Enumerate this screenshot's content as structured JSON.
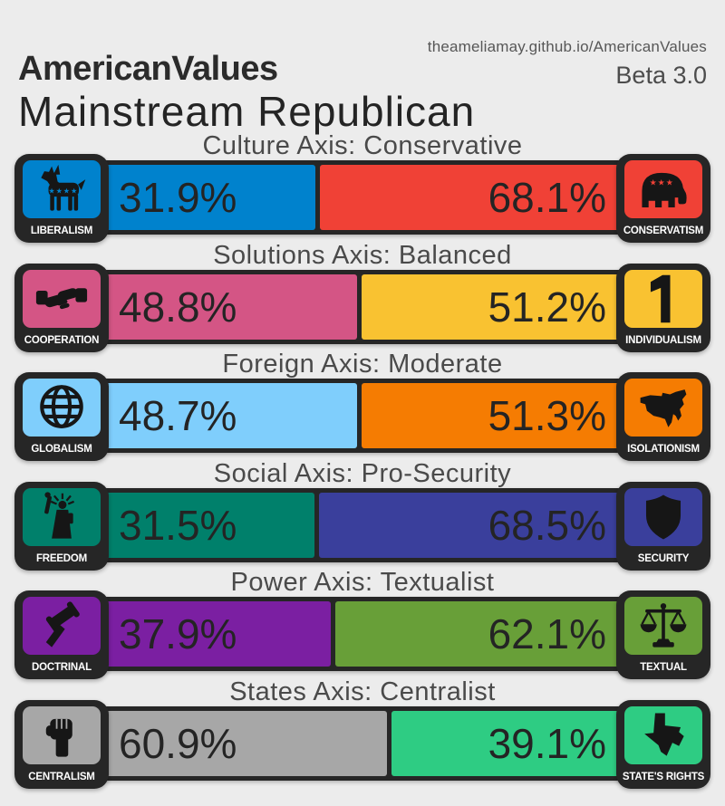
{
  "theme": {
    "background": "#ececec",
    "frame": "#262626",
    "axis_title_color": "#4a4a4a",
    "percent_text_color": "#242424",
    "label_text_color": "#ffffff"
  },
  "header": {
    "url": "theameliamay.github.io/AmericanValues",
    "app_title": "AmericanValues",
    "version": "Beta 3.0",
    "result_title": "Mainstream Republican"
  },
  "axes": [
    {
      "title": "Culture Axis: Conservative",
      "left": {
        "label": "LIBERALISM",
        "pct": "31.9%",
        "value": 31.9,
        "color": "#0082cd",
        "icon": "donkey-icon"
      },
      "right": {
        "label": "CONSERVATISM",
        "pct": "68.1%",
        "value": 68.1,
        "color": "#f04136",
        "icon": "elephant-icon"
      }
    },
    {
      "title": "Solutions Axis: Balanced",
      "left": {
        "label": "COOPERATION",
        "pct": "48.8%",
        "value": 48.8,
        "color": "#d45585",
        "icon": "handshake-icon"
      },
      "right": {
        "label": "INDIVIDUALISM",
        "pct": "51.2%",
        "value": 51.2,
        "color": "#f9c231",
        "icon": "numeral-one-icon"
      }
    },
    {
      "title": "Foreign Axis: Moderate",
      "left": {
        "label": "GLOBALISM",
        "pct": "48.7%",
        "value": 48.7,
        "color": "#7fcefc",
        "icon": "globe-icon"
      },
      "right": {
        "label": "ISOLATIONISM",
        "pct": "51.3%",
        "value": 51.3,
        "color": "#f57c02",
        "icon": "usa-map-icon"
      }
    },
    {
      "title": "Social Axis: Pro-Security",
      "left": {
        "label": "FREEDOM",
        "pct": "31.5%",
        "value": 31.5,
        "color": "#00806b",
        "icon": "statue-of-liberty-icon"
      },
      "right": {
        "label": "SECURITY",
        "pct": "68.5%",
        "value": 68.5,
        "color": "#3a3f9c",
        "icon": "shield-icon"
      }
    },
    {
      "title": "Power Axis: Textualist",
      "left": {
        "label": "DOCTRINAL",
        "pct": "37.9%",
        "value": 37.9,
        "color": "#7b1fa2",
        "icon": "gavel-icon"
      },
      "right": {
        "label": "TEXTUAL",
        "pct": "62.1%",
        "value": 62.1,
        "color": "#689f38",
        "icon": "scales-icon"
      }
    },
    {
      "title": "States Axis: Centralist",
      "left": {
        "label": "CENTRALISM",
        "pct": "60.9%",
        "value": 60.9,
        "color": "#a7a7a7",
        "icon": "raised-fist-icon"
      },
      "right": {
        "label": "STATE'S RIGHTS",
        "pct": "39.1%",
        "value": 39.1,
        "color": "#2ecc83",
        "icon": "texas-icon"
      }
    }
  ],
  "chart_data": {
    "type": "bar",
    "title": "Mainstream Republican",
    "categories": [
      "Culture",
      "Solutions",
      "Foreign",
      "Social",
      "Power",
      "States"
    ],
    "series": [
      {
        "name": "left-side",
        "values": [
          31.9,
          48.8,
          48.7,
          31.5,
          37.9,
          60.9
        ]
      },
      {
        "name": "right-side",
        "values": [
          68.1,
          51.2,
          51.3,
          68.5,
          62.1,
          39.1
        ]
      }
    ]
  }
}
